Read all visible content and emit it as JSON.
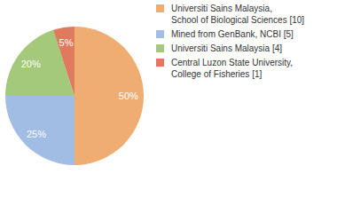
{
  "chart_data": {
    "type": "pie",
    "categories": [
      "Universiti Sains Malaysia, School of Biological Sciences [10]",
      "Mined from GenBank, NCBI [5]",
      "Universiti Sains Malaysia [4]",
      "Central Luzon State University, College of Fisheries [1]"
    ],
    "values": [
      50,
      25,
      20,
      5
    ],
    "value_labels": [
      "50%",
      "25%",
      "20%",
      "5%"
    ],
    "colors": [
      "#f0ad72",
      "#a1bde3",
      "#a4c97b",
      "#df7a5e"
    ],
    "data_labels": true,
    "legend": "right"
  }
}
